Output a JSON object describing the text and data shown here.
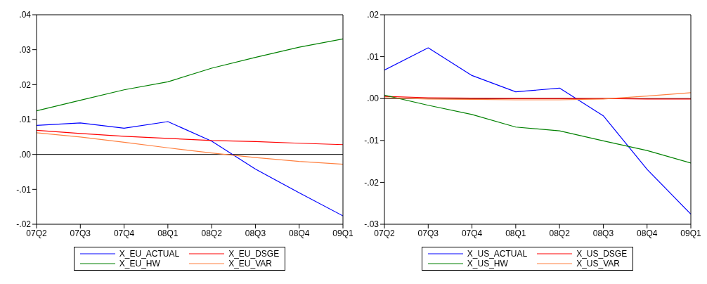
{
  "chart_data": [
    {
      "type": "line",
      "categories": [
        "07Q2",
        "07Q3",
        "07Q4",
        "08Q1",
        "08Q2",
        "08Q3",
        "08Q4",
        "09Q1"
      ],
      "series": [
        {
          "name": "X_EU_ACTUAL",
          "color": "#0000ff",
          "values": [
            0.0083,
            0.009,
            0.0075,
            0.0094,
            0.0038,
            -0.0042,
            -0.011,
            -0.0176
          ]
        },
        {
          "name": "X_EU_DSGE",
          "color": "#ff0000",
          "values": [
            0.0069,
            0.006,
            0.0052,
            0.0046,
            0.004,
            0.0037,
            0.0032,
            0.0028
          ]
        },
        {
          "name": "X_EU_HW",
          "color": "#008000",
          "values": [
            0.0125,
            0.0155,
            0.0185,
            0.0208,
            0.0247,
            0.0278,
            0.0307,
            0.0331
          ]
        },
        {
          "name": "X_EU_VAR",
          "color": "#ff8040",
          "values": [
            0.0062,
            0.005,
            0.0035,
            0.0019,
            0.0004,
            -0.0009,
            -0.002,
            -0.0028
          ]
        }
      ],
      "ylim": [
        -0.02,
        0.04
      ],
      "yticks": [
        {
          "value": -0.02,
          "label": "-.02"
        },
        {
          "value": -0.01,
          "label": "-.01"
        },
        {
          "value": 0,
          "label": ".00"
        },
        {
          "value": 0.01,
          "label": ".01"
        },
        {
          "value": 0.02,
          "label": ".02"
        },
        {
          "value": 0.03,
          "label": ".03"
        },
        {
          "value": 0.04,
          "label": ".04"
        }
      ],
      "ref_lines": [
        {
          "axis": "y",
          "value": 0,
          "color": "#000000"
        }
      ],
      "grid": false,
      "legend": "bottom"
    },
    {
      "type": "line",
      "categories": [
        "07Q2",
        "07Q3",
        "07Q4",
        "08Q1",
        "08Q2",
        "08Q3",
        "08Q4",
        "09Q1"
      ],
      "series": [
        {
          "name": "X_US_ACTUAL",
          "color": "#0000ff",
          "values": [
            0.0068,
            0.0121,
            0.0055,
            0.0016,
            0.0025,
            -0.0041,
            -0.0169,
            -0.0276
          ]
        },
        {
          "name": "X_US_DSGE",
          "color": "#ff0000",
          "values": [
            0.0005,
            0.0002,
            0.0001,
            0,
            0,
            0,
            -0.0001,
            -0.0001
          ]
        },
        {
          "name": "X_US_HW",
          "color": "#008000",
          "values": [
            0.0008,
            -0.0016,
            -0.0038,
            -0.0068,
            -0.0077,
            -0.0101,
            -0.0124,
            -0.0154
          ]
        },
        {
          "name": "X_US_VAR",
          "color": "#ff8040",
          "values": [
            0.0002,
            -0.0001,
            -0.0002,
            -0.0003,
            -0.0003,
            -0.0001,
            0.0006,
            0.0014
          ]
        }
      ],
      "ylim": [
        -0.03,
        0.02
      ],
      "yticks": [
        {
          "value": -0.03,
          "label": "-.03"
        },
        {
          "value": -0.02,
          "label": "-.02"
        },
        {
          "value": -0.01,
          "label": "-.01"
        },
        {
          "value": 0,
          "label": ".00"
        },
        {
          "value": 0.01,
          "label": ".01"
        },
        {
          "value": 0.02,
          "label": ".02"
        }
      ],
      "ref_lines": [
        {
          "axis": "y",
          "value": 0,
          "color": "#000000"
        }
      ],
      "grid": false,
      "legend": "bottom"
    }
  ]
}
